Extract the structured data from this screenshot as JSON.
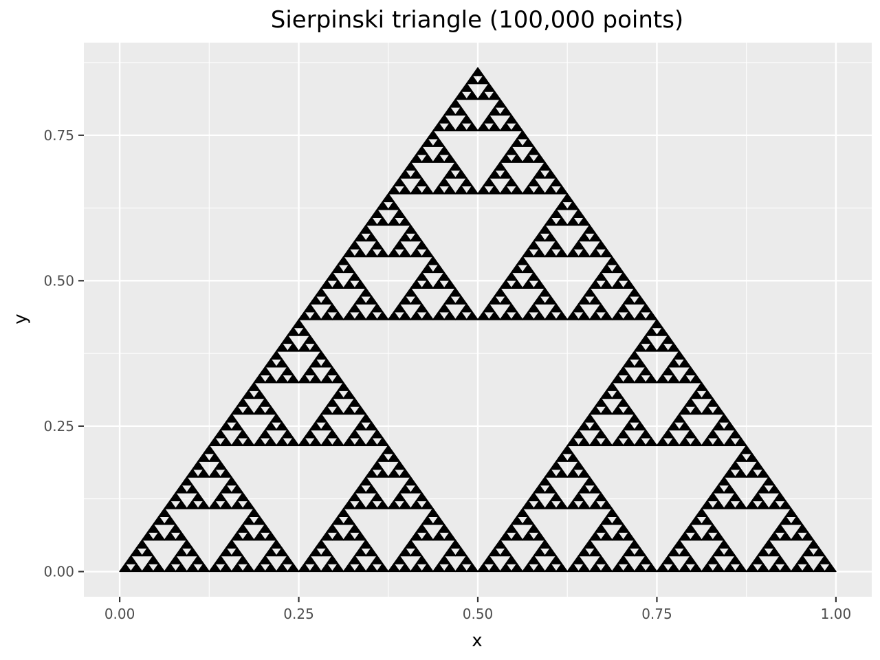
{
  "chart_data": {
    "type": "scatter",
    "title": "Sierpinski triangle (100,000 points)",
    "xlabel": "x",
    "ylabel": "y",
    "xlim": [
      -0.05,
      1.05
    ],
    "ylim": [
      -0.0433,
      0.9093
    ],
    "x_ticks": [
      0.0,
      0.25,
      0.5,
      0.75,
      1.0
    ],
    "x_tick_labels": [
      "0.00",
      "0.25",
      "0.50",
      "0.75",
      "1.00"
    ],
    "y_ticks": [
      0.0,
      0.25,
      0.5,
      0.75
    ],
    "y_tick_labels": [
      "0.00",
      "0.25",
      "0.50",
      "0.75"
    ],
    "grid": true,
    "legend": "none",
    "n_points": 100000,
    "vertices": [
      [
        0.0,
        0.0
      ],
      [
        1.0,
        0.0
      ],
      [
        0.5,
        0.866
      ]
    ],
    "point_color": "#000000",
    "panel_color": "#ebebeb",
    "grid_color": "#ffffff"
  }
}
